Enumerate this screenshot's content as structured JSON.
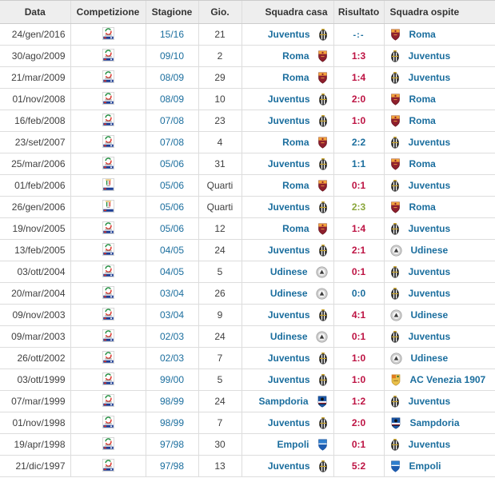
{
  "table": {
    "columns": [
      {
        "key": "date",
        "label": "Data"
      },
      {
        "key": "competition",
        "label": "Competizione"
      },
      {
        "key": "season",
        "label": "Stagione"
      },
      {
        "key": "matchday",
        "label": "Gio."
      },
      {
        "key": "home",
        "label": "Squadra casa"
      },
      {
        "key": "result",
        "label": "Risultato"
      },
      {
        "key": "away",
        "label": "Squadra ospite"
      }
    ],
    "matches": [
      {
        "date": "24/gen/2016",
        "competition": "Serie A",
        "competition_icon": "serie-a-tim-icon",
        "season": "15/16",
        "matchday": "21",
        "home": "Juventus",
        "home_badge": "juventus-badge",
        "result": "-:-",
        "outcome": "upcoming",
        "away": "Roma",
        "away_badge": "roma-badge"
      },
      {
        "date": "30/ago/2009",
        "competition": "Serie A",
        "competition_icon": "serie-a-tim-icon",
        "season": "09/10",
        "matchday": "2",
        "home": "Roma",
        "home_badge": "roma-badge",
        "result": "1:3",
        "outcome": "loss",
        "away": "Juventus",
        "away_badge": "juventus-badge"
      },
      {
        "date": "21/mar/2009",
        "competition": "Serie A",
        "competition_icon": "serie-a-tim-icon",
        "season": "08/09",
        "matchday": "29",
        "home": "Roma",
        "home_badge": "roma-badge",
        "result": "1:4",
        "outcome": "loss",
        "away": "Juventus",
        "away_badge": "juventus-badge"
      },
      {
        "date": "01/nov/2008",
        "competition": "Serie A",
        "competition_icon": "serie-a-tim-icon",
        "season": "08/09",
        "matchday": "10",
        "home": "Juventus",
        "home_badge": "juventus-badge",
        "result": "2:0",
        "outcome": "loss",
        "away": "Roma",
        "away_badge": "roma-badge"
      },
      {
        "date": "16/feb/2008",
        "competition": "Serie A",
        "competition_icon": "serie-a-tim-icon",
        "season": "07/08",
        "matchday": "23",
        "home": "Juventus",
        "home_badge": "juventus-badge",
        "result": "1:0",
        "outcome": "loss",
        "away": "Roma",
        "away_badge": "roma-badge"
      },
      {
        "date": "23/set/2007",
        "competition": "Serie A",
        "competition_icon": "serie-a-tim-icon",
        "season": "07/08",
        "matchday": "4",
        "home": "Roma",
        "home_badge": "roma-badge",
        "result": "2:2",
        "outcome": "draw",
        "away": "Juventus",
        "away_badge": "juventus-badge"
      },
      {
        "date": "25/mar/2006",
        "competition": "Serie A",
        "competition_icon": "serie-a-tim-icon",
        "season": "05/06",
        "matchday": "31",
        "home": "Juventus",
        "home_badge": "juventus-badge",
        "result": "1:1",
        "outcome": "draw",
        "away": "Roma",
        "away_badge": "roma-badge"
      },
      {
        "date": "01/feb/2006",
        "competition": "Coppa Italia",
        "competition_icon": "coppa-italia-tim-icon",
        "season": "05/06",
        "matchday": "Quarti",
        "home": "Roma",
        "home_badge": "roma-badge",
        "result": "0:1",
        "outcome": "loss",
        "away": "Juventus",
        "away_badge": "juventus-badge"
      },
      {
        "date": "26/gen/2006",
        "competition": "Coppa Italia",
        "competition_icon": "coppa-italia-tim-icon",
        "season": "05/06",
        "matchday": "Quarti",
        "home": "Juventus",
        "home_badge": "juventus-badge",
        "result": "2:3",
        "outcome": "win",
        "away": "Roma",
        "away_badge": "roma-badge"
      },
      {
        "date": "19/nov/2005",
        "competition": "Serie A",
        "competition_icon": "serie-a-tim-icon",
        "season": "05/06",
        "matchday": "12",
        "home": "Roma",
        "home_badge": "roma-badge",
        "result": "1:4",
        "outcome": "loss",
        "away": "Juventus",
        "away_badge": "juventus-badge"
      },
      {
        "date": "13/feb/2005",
        "competition": "Serie A",
        "competition_icon": "serie-a-tim-icon",
        "season": "04/05",
        "matchday": "24",
        "home": "Juventus",
        "home_badge": "juventus-badge",
        "result": "2:1",
        "outcome": "loss",
        "away": "Udinese",
        "away_badge": "udinese-badge"
      },
      {
        "date": "03/ott/2004",
        "competition": "Serie A",
        "competition_icon": "serie-a-tim-icon",
        "season": "04/05",
        "matchday": "5",
        "home": "Udinese",
        "home_badge": "udinese-badge",
        "result": "0:1",
        "outcome": "loss",
        "away": "Juventus",
        "away_badge": "juventus-badge"
      },
      {
        "date": "20/mar/2004",
        "competition": "Serie A",
        "competition_icon": "serie-a-tim-icon",
        "season": "03/04",
        "matchday": "26",
        "home": "Udinese",
        "home_badge": "udinese-badge",
        "result": "0:0",
        "outcome": "draw",
        "away": "Juventus",
        "away_badge": "juventus-badge"
      },
      {
        "date": "09/nov/2003",
        "competition": "Serie A",
        "competition_icon": "serie-a-tim-icon",
        "season": "03/04",
        "matchday": "9",
        "home": "Juventus",
        "home_badge": "juventus-badge",
        "result": "4:1",
        "outcome": "loss",
        "away": "Udinese",
        "away_badge": "udinese-badge"
      },
      {
        "date": "09/mar/2003",
        "competition": "Serie A",
        "competition_icon": "serie-a-tim-icon",
        "season": "02/03",
        "matchday": "24",
        "home": "Udinese",
        "home_badge": "udinese-badge",
        "result": "0:1",
        "outcome": "loss",
        "away": "Juventus",
        "away_badge": "juventus-badge"
      },
      {
        "date": "26/ott/2002",
        "competition": "Serie A",
        "competition_icon": "serie-a-tim-icon",
        "season": "02/03",
        "matchday": "7",
        "home": "Juventus",
        "home_badge": "juventus-badge",
        "result": "1:0",
        "outcome": "loss",
        "away": "Udinese",
        "away_badge": "udinese-badge"
      },
      {
        "date": "03/ott/1999",
        "competition": "Serie A",
        "competition_icon": "serie-a-tim-icon",
        "season": "99/00",
        "matchday": "5",
        "home": "Juventus",
        "home_badge": "juventus-badge",
        "result": "1:0",
        "outcome": "loss",
        "away": "AC Venezia 1907",
        "away_badge": "venezia-badge"
      },
      {
        "date": "07/mar/1999",
        "competition": "Serie A",
        "competition_icon": "serie-a-tim-icon",
        "season": "98/99",
        "matchday": "24",
        "home": "Sampdoria",
        "home_badge": "sampdoria-badge",
        "result": "1:2",
        "outcome": "loss",
        "away": "Juventus",
        "away_badge": "juventus-badge"
      },
      {
        "date": "01/nov/1998",
        "competition": "Serie A",
        "competition_icon": "serie-a-tim-icon",
        "season": "98/99",
        "matchday": "7",
        "home": "Juventus",
        "home_badge": "juventus-badge",
        "result": "2:0",
        "outcome": "loss",
        "away": "Sampdoria",
        "away_badge": "sampdoria-badge"
      },
      {
        "date": "19/apr/1998",
        "competition": "Serie A",
        "competition_icon": "serie-a-tim-icon",
        "season": "97/98",
        "matchday": "30",
        "home": "Empoli",
        "home_badge": "empoli-badge",
        "result": "0:1",
        "outcome": "loss",
        "away": "Juventus",
        "away_badge": "juventus-badge"
      },
      {
        "date": "21/dic/1997",
        "competition": "Serie A",
        "competition_icon": "serie-a-tim-icon",
        "season": "97/98",
        "matchday": "13",
        "home": "Juventus",
        "home_badge": "juventus-badge",
        "result": "5:2",
        "outcome": "loss",
        "away": "Empoli",
        "away_badge": "empoli-badge"
      }
    ]
  },
  "colors": {
    "link_blue": "#1b6e9e",
    "result_loss_red": "#bd1343",
    "result_win_green": "#8aa63b",
    "result_draw_blue": "#1b6e9e",
    "header_bg": "#eeeeee",
    "row_border": "#dddddd",
    "text_dark": "#404040"
  }
}
